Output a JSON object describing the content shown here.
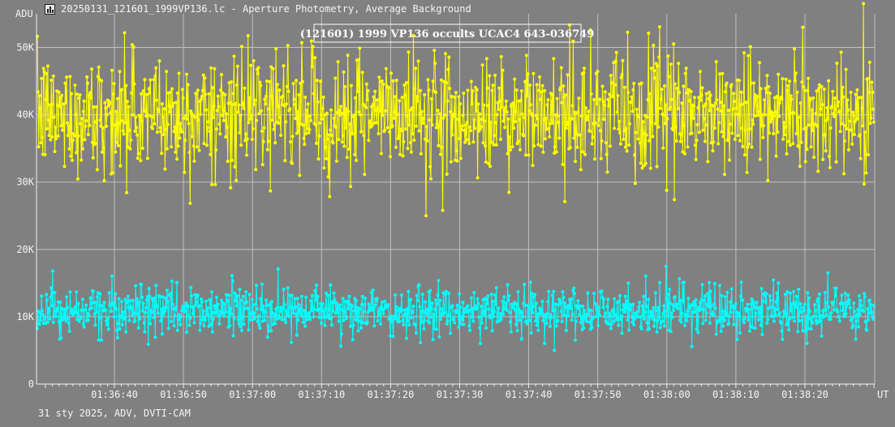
{
  "window": {
    "title": "20250131_121601_1999VP136.lc - Aperture Photometry, Average Background"
  },
  "footer": {
    "text": "31 sty 2025, ADV, DVTI-CAM"
  },
  "colors": {
    "background": "#808080",
    "grid": "#c0c0c0",
    "target": "#ffff00",
    "comparison": "#00ffff"
  },
  "chart_data": {
    "type": "line",
    "title": "(121601) 1999 VP136 occults UCAC4 643-036749",
    "ylabel": "ADU",
    "xlabel": "UT",
    "ylim": [
      0,
      55000
    ],
    "xlim_seconds_after": "01:36:33",
    "y_ticks": [
      {
        "value": 0,
        "label": "0"
      },
      {
        "value": 10000,
        "label": "10K"
      },
      {
        "value": 20000,
        "label": "20K"
      },
      {
        "value": 30000,
        "label": "30K"
      },
      {
        "value": 40000,
        "label": "40K"
      },
      {
        "value": 50000,
        "label": "50K"
      }
    ],
    "x_ticks": [
      "01:36:40",
      "01:36:50",
      "01:37:00",
      "01:37:10",
      "01:37:20",
      "01:37:30",
      "01:37:40",
      "01:37:50",
      "01:38:00",
      "01:38:10",
      "01:38:20"
    ],
    "x_range": [
      "01:36:33.2",
      "01:38:33.8"
    ],
    "grid": true,
    "markers": true,
    "series": [
      {
        "color": "#ffff00",
        "mean": 40000,
        "spread": 4200,
        "min": 25000,
        "max": 56500,
        "points": 1200
      },
      {
        "color": "#00ffff",
        "mean": 10800,
        "spread": 1700,
        "min": 5000,
        "max": 17500,
        "points": 1200
      }
    ]
  }
}
